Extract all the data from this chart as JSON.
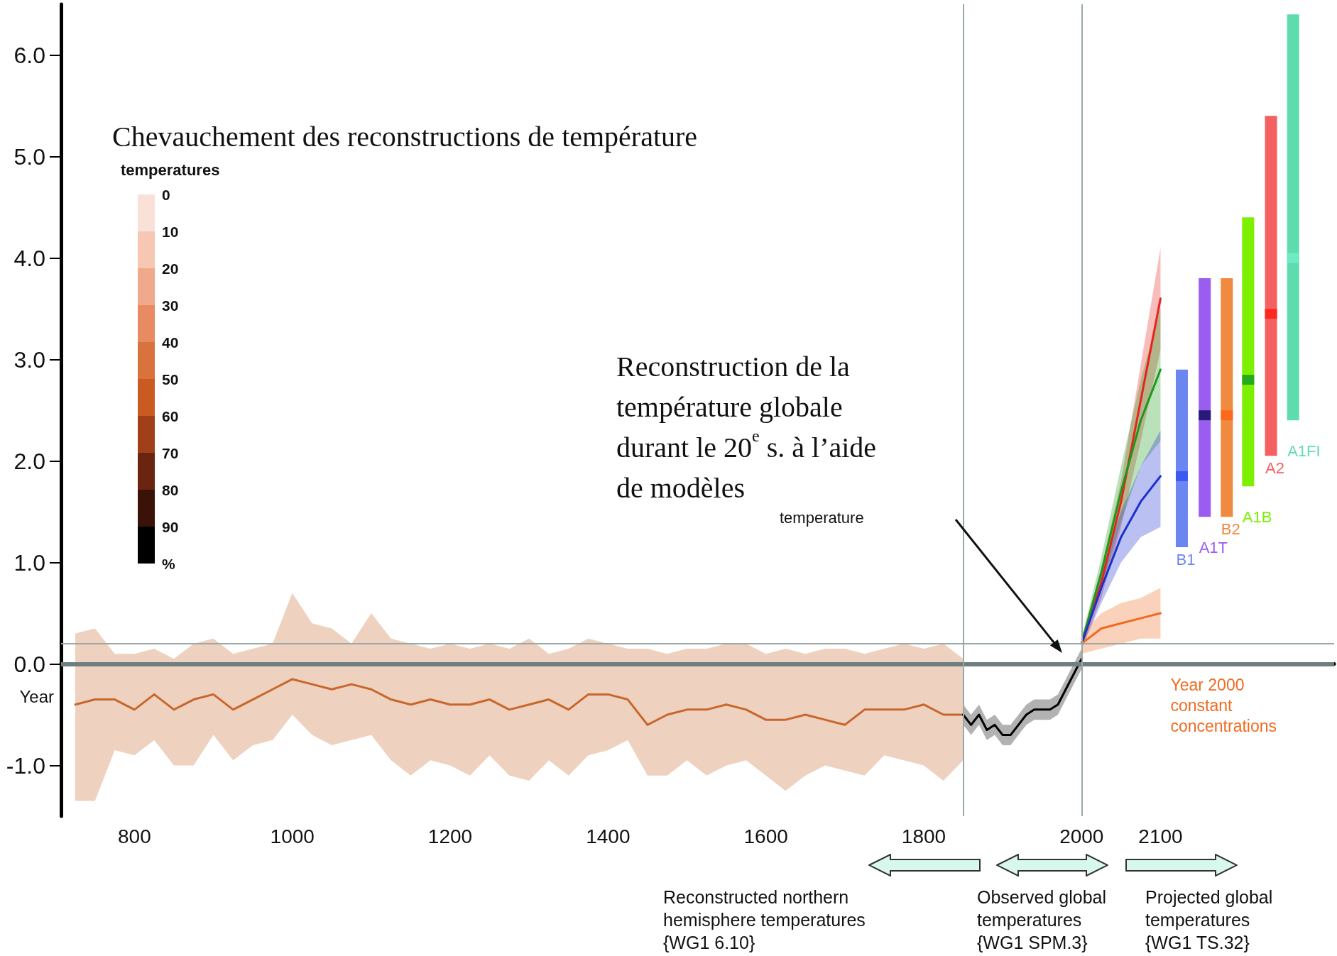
{
  "chart_data": {
    "type": "line",
    "xlabel": "Year",
    "xlim": [
      707,
      2320
    ],
    "xticks": [
      800,
      1000,
      1200,
      1400,
      1600,
      1800,
      2000,
      2100
    ],
    "ylim": [
      -1.5,
      6.5
    ],
    "yticks": [
      {
        "value": -1,
        "label": "-1.0"
      },
      {
        "value": 0,
        "label": "0.0"
      },
      {
        "value": 1,
        "label": "1.0"
      },
      {
        "value": 2,
        "label": "2.0"
      },
      {
        "value": 3,
        "label": "3.0"
      },
      {
        "value": 4,
        "label": "4.0"
      },
      {
        "value": 5,
        "label": "5.0"
      },
      {
        "value": 6,
        "label": "6.0"
      }
    ],
    "legend": false,
    "grid": false,
    "marker": "none",
    "annotations": [
      "Chevauchement des reconstructions de température",
      "Reconstruction de la\ntempérature globale\ndurant le 20$^{e}$ s. à l’aide\nde modèles",
      "temperature",
      "Reconstructed northern\nhemisphere temperatures\n{WG1 6.10}",
      "Observed global\ntemperatures\n{WG1 SPM.3}",
      "Projected global\ntemperatures\n{WG1 TS.32}",
      "temperatures",
      "0",
      "10",
      "20",
      "30",
      "40",
      "50",
      "60",
      "70",
      "80",
      "90",
      "%"
    ],
    "ref_lines": [
      {
        "axis": "y",
        "value": 0,
        "color": "#6f7f7f"
      },
      {
        "axis": "y",
        "value": 0.2,
        "color": "#9aa8a8"
      },
      {
        "axis": "x",
        "value": 1850,
        "color": "#9aa8a8"
      },
      {
        "axis": "x",
        "value": 2000,
        "color": "#9aa8a8"
      }
    ],
    "series": [
      {
        "color": "#c8672c",
        "x": [
          725,
          750,
          775,
          800,
          825,
          850,
          875,
          900,
          925,
          950,
          975,
          1000,
          1025,
          1050,
          1075,
          1100,
          1125,
          1150,
          1175,
          1200,
          1225,
          1250,
          1275,
          1300,
          1325,
          1350,
          1375,
          1400,
          1425,
          1450,
          1475,
          1500,
          1525,
          1550,
          1575,
          1600,
          1625,
          1650,
          1675,
          1700,
          1725,
          1750,
          1775,
          1800,
          1825,
          1850
        ],
        "values": [
          -0.4,
          -0.35,
          -0.35,
          -0.45,
          -0.3,
          -0.45,
          -0.35,
          -0.3,
          -0.45,
          -0.35,
          -0.25,
          -0.15,
          -0.2,
          -0.25,
          -0.2,
          -0.25,
          -0.35,
          -0.4,
          -0.35,
          -0.4,
          -0.4,
          -0.35,
          -0.45,
          -0.4,
          -0.35,
          -0.45,
          -0.3,
          -0.3,
          -0.35,
          -0.6,
          -0.5,
          -0.45,
          -0.45,
          -0.4,
          -0.45,
          -0.55,
          -0.55,
          -0.5,
          -0.55,
          -0.6,
          -0.45,
          -0.45,
          -0.45,
          -0.4,
          -0.5,
          -0.5
        ],
        "lower": [
          -1.35,
          -1.35,
          -0.85,
          -0.9,
          -0.75,
          -1.0,
          -1.0,
          -0.7,
          -0.95,
          -0.8,
          -0.75,
          -0.5,
          -0.7,
          -0.8,
          -0.75,
          -0.7,
          -0.95,
          -1.1,
          -0.95,
          -1.0,
          -1.1,
          -0.9,
          -1.1,
          -1.15,
          -0.95,
          -1.1,
          -0.9,
          -0.85,
          -0.75,
          -1.1,
          -1.1,
          -0.95,
          -1.1,
          -1.0,
          -0.95,
          -1.1,
          -1.25,
          -1.1,
          -1.0,
          -1.05,
          -1.1,
          -0.9,
          -0.95,
          -1.0,
          -1.15,
          -0.95
        ],
        "upper": [
          0.3,
          0.35,
          0.1,
          0.1,
          0.15,
          0.05,
          0.2,
          0.25,
          0.1,
          0.15,
          0.2,
          0.7,
          0.4,
          0.35,
          0.2,
          0.5,
          0.25,
          0.2,
          0.15,
          0.2,
          0.15,
          0.2,
          0.15,
          0.25,
          0.1,
          0.15,
          0.25,
          0.2,
          0.15,
          0.15,
          0.1,
          0.15,
          0.15,
          0.2,
          0.2,
          0.1,
          0.15,
          0.1,
          0.15,
          0.15,
          0.1,
          0.15,
          0.2,
          0.15,
          0.2,
          0.05
        ]
      },
      {
        "color": "#000000",
        "x": [
          1850,
          1860,
          1870,
          1880,
          1890,
          1900,
          1910,
          1920,
          1930,
          1940,
          1950,
          1960,
          1970,
          1980,
          1990,
          2000
        ],
        "values": [
          -0.5,
          -0.6,
          -0.5,
          -0.65,
          -0.6,
          -0.7,
          -0.7,
          -0.6,
          -0.5,
          -0.45,
          -0.45,
          -0.45,
          -0.4,
          -0.25,
          -0.1,
          0.05
        ],
        "lower": [
          -0.6,
          -0.7,
          -0.6,
          -0.75,
          -0.7,
          -0.8,
          -0.8,
          -0.7,
          -0.6,
          -0.55,
          -0.55,
          -0.55,
          -0.5,
          -0.35,
          -0.2,
          -0.05
        ],
        "upper": [
          -0.4,
          -0.5,
          -0.4,
          -0.55,
          -0.5,
          -0.6,
          -0.6,
          -0.5,
          -0.4,
          -0.35,
          -0.35,
          -0.35,
          -0.3,
          -0.15,
          0.0,
          0.15
        ]
      },
      {
        "color": "#e8231a",
        "x": [
          2000,
          2025,
          2050,
          2075,
          2100
        ],
        "values": [
          0.2,
          0.8,
          1.6,
          2.6,
          3.6
        ],
        "lower": [
          0.15,
          0.65,
          1.35,
          2.2,
          3.1
        ],
        "upper": [
          0.25,
          0.95,
          1.8,
          2.95,
          4.1
        ]
      },
      {
        "color": "#1a9a1a",
        "x": [
          2000,
          2025,
          2050,
          2075,
          2100
        ],
        "values": [
          0.2,
          0.9,
          1.7,
          2.4,
          2.9
        ],
        "lower": [
          0.15,
          0.75,
          1.4,
          1.95,
          2.2
        ],
        "upper": [
          0.25,
          1.05,
          1.95,
          2.8,
          3.5
        ]
      },
      {
        "color": "#1a30d0",
        "x": [
          2000,
          2025,
          2050,
          2075,
          2100
        ],
        "values": [
          0.2,
          0.75,
          1.25,
          1.6,
          1.85
        ],
        "lower": [
          0.15,
          0.6,
          1.0,
          1.25,
          1.35
        ],
        "upper": [
          0.25,
          0.9,
          1.5,
          1.95,
          2.3
        ]
      },
      {
        "name": "Year 2000 constant concentrations",
        "color": "#f06a20",
        "x": [
          2000,
          2025,
          2050,
          2075,
          2100
        ],
        "values": [
          0.2,
          0.35,
          0.4,
          0.45,
          0.5
        ],
        "lower": [
          0.1,
          0.15,
          0.2,
          0.25,
          0.25
        ],
        "upper": [
          0.3,
          0.5,
          0.6,
          0.65,
          0.75
        ]
      },
      {
        "type": "bar",
        "name": "B1",
        "color": "#6b86f0",
        "x": [
          2127
        ],
        "base": [
          1.15
        ],
        "values": [
          1.75
        ]
      },
      {
        "type": "bar",
        "name": "A1T",
        "color": "#9b5cf0",
        "x": [
          2156
        ],
        "base": [
          1.45
        ],
        "values": [
          2.35
        ]
      },
      {
        "type": "bar",
        "name": "B2",
        "color": "#f08a40",
        "x": [
          2184
        ],
        "base": [
          1.45
        ],
        "values": [
          2.35
        ]
      },
      {
        "type": "bar",
        "name": "A1B",
        "color": "#7cf000",
        "x": [
          2211
        ],
        "base": [
          1.75
        ],
        "values": [
          2.65
        ]
      },
      {
        "type": "bar",
        "name": "A2",
        "color": "#f56060",
        "x": [
          2240
        ],
        "base": [
          2.05
        ],
        "values": [
          3.35
        ]
      },
      {
        "type": "bar",
        "name": "A1FI",
        "color": "#5fdcae",
        "x": [
          2268
        ],
        "base": [
          2.4
        ],
        "values": [
          4.0
        ]
      },
      {
        "type": "scatter",
        "marker": "square",
        "x": [
          2127,
          2156,
          2184,
          2211,
          2240,
          2268
        ],
        "values": [
          1.85,
          2.45,
          2.45,
          2.8,
          3.45,
          4.0
        ],
        "colors": [
          "#3050f0",
          "#0a0a5a",
          "#ff6010",
          "#109a20",
          "#ff1a10",
          "#70f0c8"
        ]
      }
    ]
  }
}
